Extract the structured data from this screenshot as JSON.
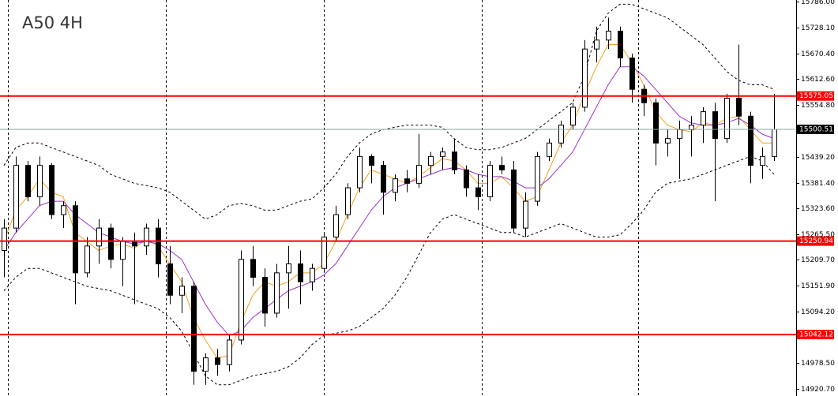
{
  "chart_data": {
    "type": "candlestick",
    "title": "A50 4H",
    "open": [
      15230,
      15280,
      15420,
      15350,
      15420,
      15310,
      15330,
      15180,
      15240,
      15280,
      15210,
      15250,
      15240,
      15280,
      15200,
      15130,
      15150,
      14960,
      14990,
      14975,
      15030,
      15210,
      15170,
      15090,
      15180,
      15200,
      15160,
      15190,
      15260,
      15310,
      15370,
      15440,
      15420,
      15360,
      15390,
      15380,
      15420,
      15440,
      15450,
      15410,
      15370,
      15350,
      15420,
      15410,
      15280,
      15340,
      15440,
      15470,
      15510,
      15550,
      15680,
      15700,
      15720,
      15660,
      15590,
      15560,
      15470,
      15480,
      15500,
      15510,
      15540,
      15480,
      15570,
      15530,
      15420,
      15440
    ],
    "high": [
      15300,
      15440,
      15430,
      15440,
      15425,
      15340,
      15340,
      15260,
      15300,
      15290,
      15260,
      15270,
      15290,
      15300,
      15240,
      15170,
      15160,
      15000,
      15010,
      15040,
      15230,
      15240,
      15190,
      15200,
      15240,
      15230,
      15200,
      15270,
      15330,
      15380,
      15460,
      15445,
      15430,
      15400,
      15410,
      15490,
      15450,
      15460,
      15480,
      15420,
      15400,
      15430,
      15440,
      15430,
      15360,
      15450,
      15480,
      15520,
      15560,
      15700,
      15730,
      15750,
      15730,
      15670,
      15600,
      15570,
      15500,
      15520,
      15530,
      15550,
      15560,
      15580,
      15690,
      15540,
      15460,
      15580
    ],
    "low": [
      15170,
      15270,
      15340,
      15330,
      15300,
      15280,
      15110,
      15170,
      15200,
      15190,
      15150,
      15110,
      15220,
      15170,
      15110,
      15090,
      14930,
      14930,
      14950,
      14960,
      15020,
      15150,
      15060,
      15080,
      15100,
      15110,
      15140,
      15180,
      15250,
      15300,
      15360,
      15380,
      15310,
      15340,
      15360,
      15370,
      15400,
      15410,
      15400,
      15350,
      15320,
      15340,
      15400,
      15270,
      15260,
      15330,
      15430,
      15460,
      15500,
      15540,
      15650,
      15680,
      15640,
      15560,
      15530,
      15420,
      15440,
      15390,
      15440,
      15470,
      15340,
      15470,
      15510,
      15380,
      15390,
      15430
    ],
    "close": [
      15280,
      15420,
      15350,
      15420,
      15310,
      15330,
      15180,
      15240,
      15280,
      15210,
      15250,
      15240,
      15280,
      15200,
      15130,
      15150,
      14960,
      14990,
      14975,
      15030,
      15210,
      15170,
      15090,
      15180,
      15200,
      15160,
      15190,
      15260,
      15310,
      15370,
      15440,
      15420,
      15360,
      15390,
      15380,
      15420,
      15440,
      15450,
      15410,
      15370,
      15350,
      15420,
      15410,
      15280,
      15340,
      15440,
      15470,
      15510,
      15550,
      15680,
      15700,
      15720,
      15660,
      15590,
      15560,
      15470,
      15480,
      15500,
      15510,
      15540,
      15480,
      15570,
      15530,
      15420,
      15440,
      15500.51
    ],
    "up_color": "#ffffff",
    "down_color": "#000000",
    "wick_color": "#000000",
    "overlays": [
      {
        "color": "#f0a020",
        "dashed": false,
        "values": [
          15250,
          15320,
          15350,
          15390,
          15360,
          15350,
          15270,
          15250,
          15230,
          15240,
          15245,
          15235,
          15255,
          15240,
          15200,
          15160,
          15080,
          15030,
          14990,
          14995,
          15070,
          15130,
          15160,
          15150,
          15160,
          15180,
          15180,
          15200,
          15250,
          15310,
          15370,
          15410,
          15400,
          15390,
          15380,
          15395,
          15415,
          15435,
          15430,
          15410,
          15380,
          15380,
          15395,
          15370,
          15340,
          15350,
          15410,
          15470,
          15510,
          15580,
          15640,
          15690,
          15690,
          15650,
          15600,
          15540,
          15510,
          15500,
          15495,
          15515,
          15510,
          15525,
          15530,
          15500,
          15470,
          15470
        ]
      },
      {
        "color": "#9933cc",
        "dashed": false,
        "values": [
          15230,
          15270,
          15300,
          15330,
          15340,
          15340,
          15310,
          15290,
          15270,
          15260,
          15250,
          15245,
          15250,
          15245,
          15230,
          15210,
          15160,
          15110,
          15070,
          15040,
          15050,
          15080,
          15100,
          15120,
          15140,
          15150,
          15160,
          15175,
          15200,
          15240,
          15280,
          15320,
          15350,
          15370,
          15380,
          15390,
          15400,
          15410,
          15415,
          15410,
          15400,
          15395,
          15395,
          15385,
          15370,
          15370,
          15390,
          15420,
          15450,
          15500,
          15550,
          15600,
          15640,
          15640,
          15620,
          15590,
          15560,
          15530,
          15515,
          15510,
          15510,
          15515,
          15525,
          15510,
          15490,
          15480
        ]
      },
      {
        "color": "#000000",
        "dashed": true,
        "values": [
          15420,
          15460,
          15470,
          15470,
          15460,
          15450,
          15440,
          15430,
          15420,
          15400,
          15390,
          15380,
          15375,
          15370,
          15360,
          15340,
          15320,
          15300,
          15310,
          15330,
          15335,
          15330,
          15320,
          15320,
          15330,
          15340,
          15345,
          15370,
          15400,
          15440,
          15470,
          15490,
          15500,
          15505,
          15510,
          15510,
          15510,
          15505,
          15480,
          15460,
          15455,
          15455,
          15460,
          15470,
          15480,
          15500,
          15520,
          15540,
          15560,
          15620,
          15720,
          15760,
          15780,
          15780,
          15770,
          15760,
          15750,
          15730,
          15710,
          15690,
          15660,
          15630,
          15610,
          15600,
          15600,
          15590
        ]
      },
      {
        "color": "#000000",
        "dashed": true,
        "values": [
          15140,
          15170,
          15190,
          15190,
          15180,
          15170,
          15160,
          15150,
          15145,
          15140,
          15130,
          15120,
          15110,
          15100,
          15080,
          15050,
          15000,
          14950,
          14930,
          14930,
          14940,
          14950,
          14955,
          14960,
          14970,
          14990,
          15020,
          15040,
          15045,
          15050,
          15060,
          15080,
          15100,
          15130,
          15170,
          15220,
          15270,
          15300,
          15310,
          15300,
          15290,
          15280,
          15270,
          15270,
          15260,
          15270,
          15280,
          15290,
          15280,
          15270,
          15260,
          15260,
          15265,
          15290,
          15320,
          15360,
          15380,
          15385,
          15390,
          15400,
          15410,
          15420,
          15430,
          15440,
          15430,
          15400
        ]
      }
    ],
    "levels": [
      15575.05,
      15250.94,
      15042.12
    ],
    "level_color": "#ff0000",
    "price_line_color": "#8aa0a0",
    "ylim": [
      14920.7,
      15786.0
    ],
    "yticks": [
      {
        "value": 15786.0,
        "label": "15786.00"
      },
      {
        "value": 15728.1,
        "label": "15728.10"
      },
      {
        "value": 15670.4,
        "label": "15670.40"
      },
      {
        "value": 15612.6,
        "label": "15612.60"
      },
      {
        "value": 15554.8,
        "label": "15554.80"
      },
      {
        "value": 15439.2,
        "label": "15439.20"
      },
      {
        "value": 15381.4,
        "label": "15381.40"
      },
      {
        "value": 15323.6,
        "label": "15323.60"
      },
      {
        "value": 15265.5,
        "label": "15265.50"
      },
      {
        "value": 15209.7,
        "label": "15209.70"
      },
      {
        "value": 15151.9,
        "label": "15151.90"
      },
      {
        "value": 15094.2,
        "label": "15094.20"
      },
      {
        "value": 14978.5,
        "label": "14978.50"
      },
      {
        "value": 14920.7,
        "label": "14920.70"
      }
    ]
  }
}
